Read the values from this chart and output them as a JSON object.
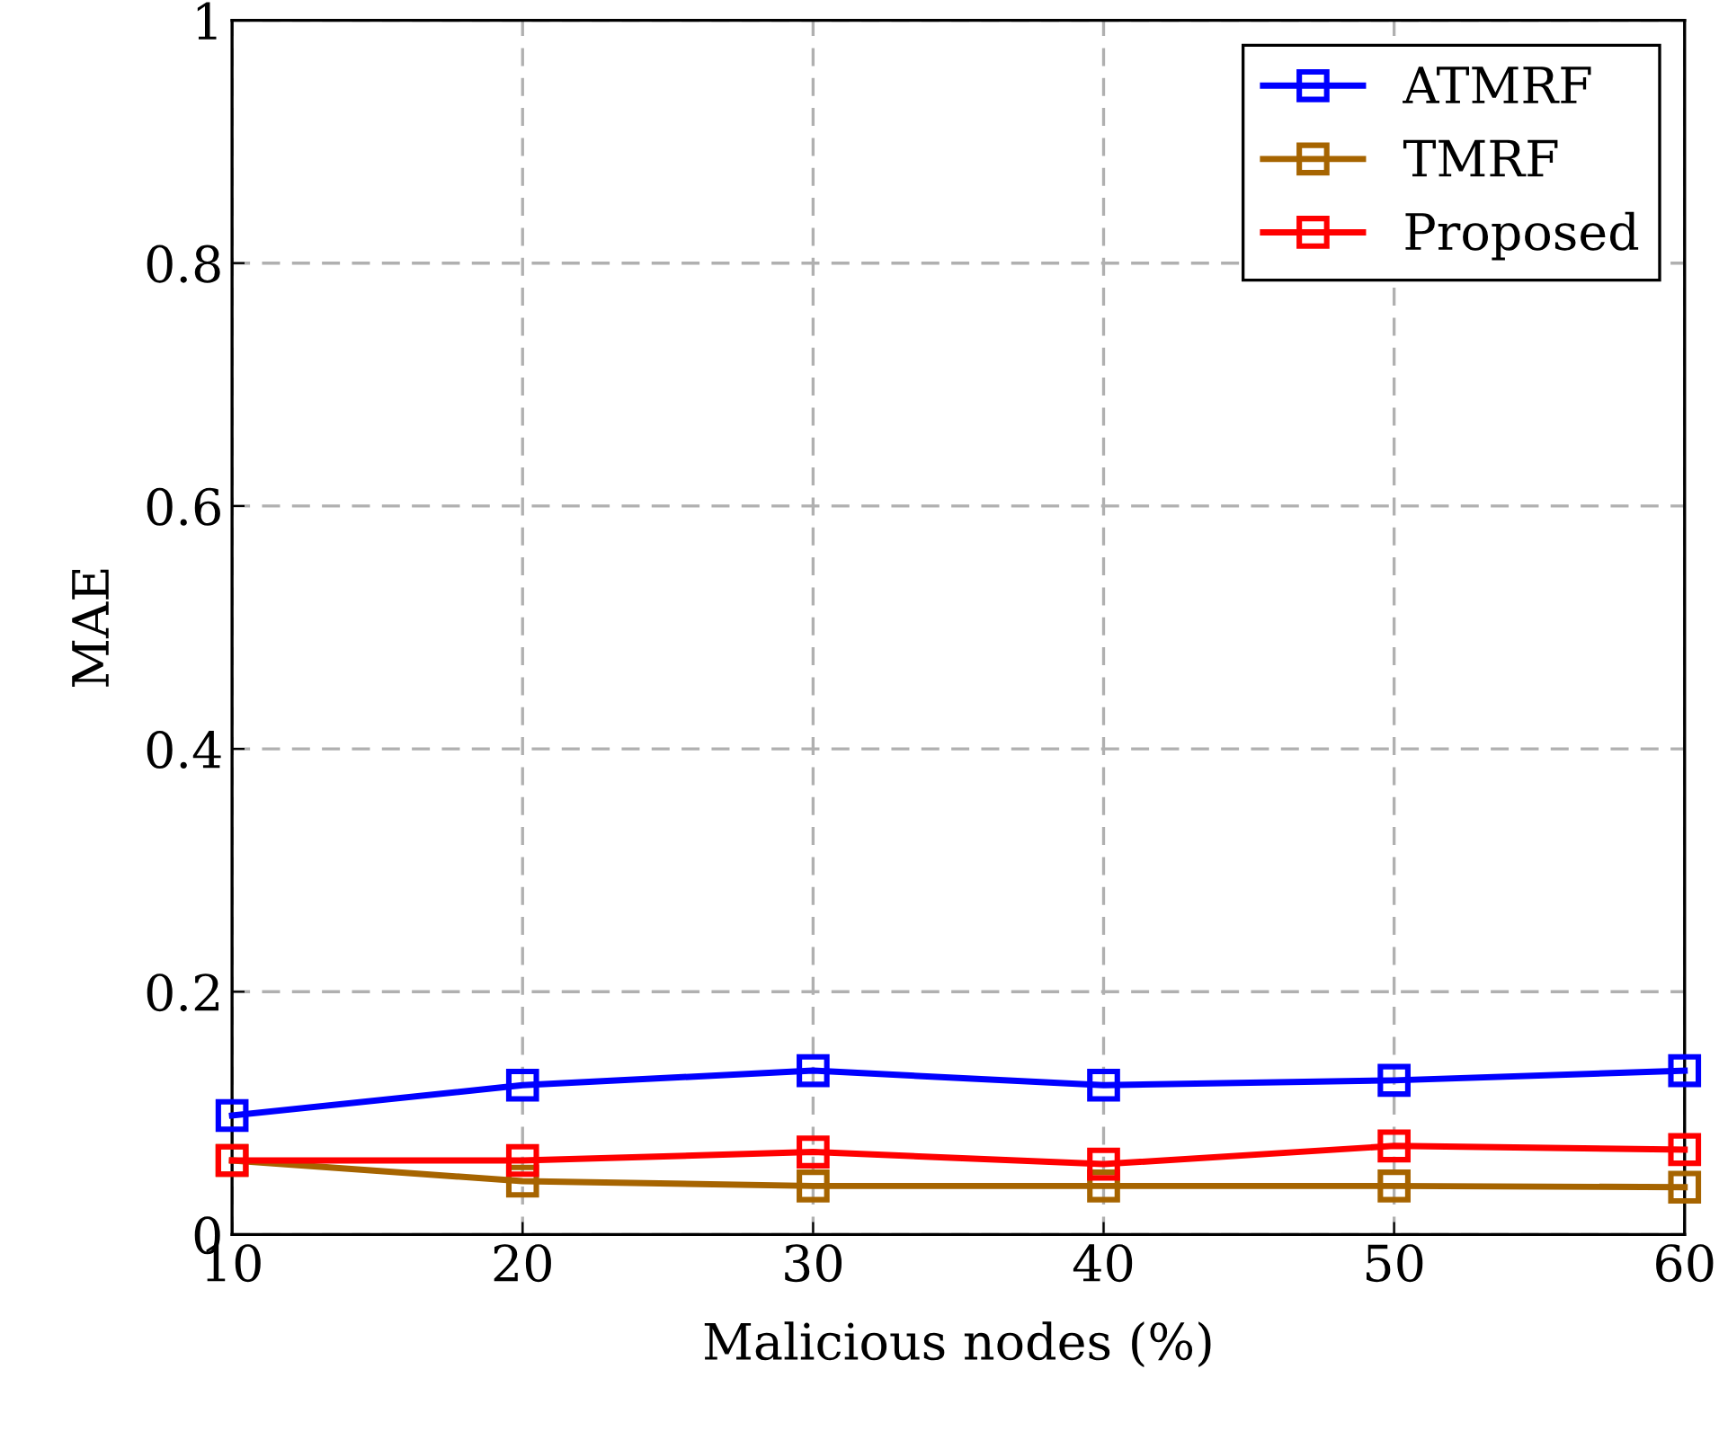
{
  "chart_data": {
    "type": "line",
    "xlabel": "Malicious nodes (%)",
    "ylabel": "MAE",
    "x": [
      10,
      20,
      30,
      40,
      50,
      60
    ],
    "series": [
      {
        "name": "ATMRF",
        "color": "#0000ff",
        "values": [
          0.098,
          0.123,
          0.135,
          0.123,
          0.127,
          0.135
        ]
      },
      {
        "name": "TMRF",
        "color": "#a66400",
        "values": [
          0.061,
          0.044,
          0.04,
          0.04,
          0.04,
          0.039
        ]
      },
      {
        "name": "Proposed",
        "color": "#ff0000",
        "values": [
          0.061,
          0.061,
          0.068,
          0.058,
          0.073,
          0.07
        ]
      }
    ],
    "xlim": [
      10,
      60
    ],
    "xticks": [
      10,
      20,
      30,
      40,
      50,
      60
    ],
    "ylim": [
      0,
      1
    ],
    "yticks": [
      0,
      0.2,
      0.4,
      0.6,
      0.8,
      1
    ],
    "grid": true,
    "legend": "top right",
    "marker": "square",
    "line_style": "solid"
  }
}
